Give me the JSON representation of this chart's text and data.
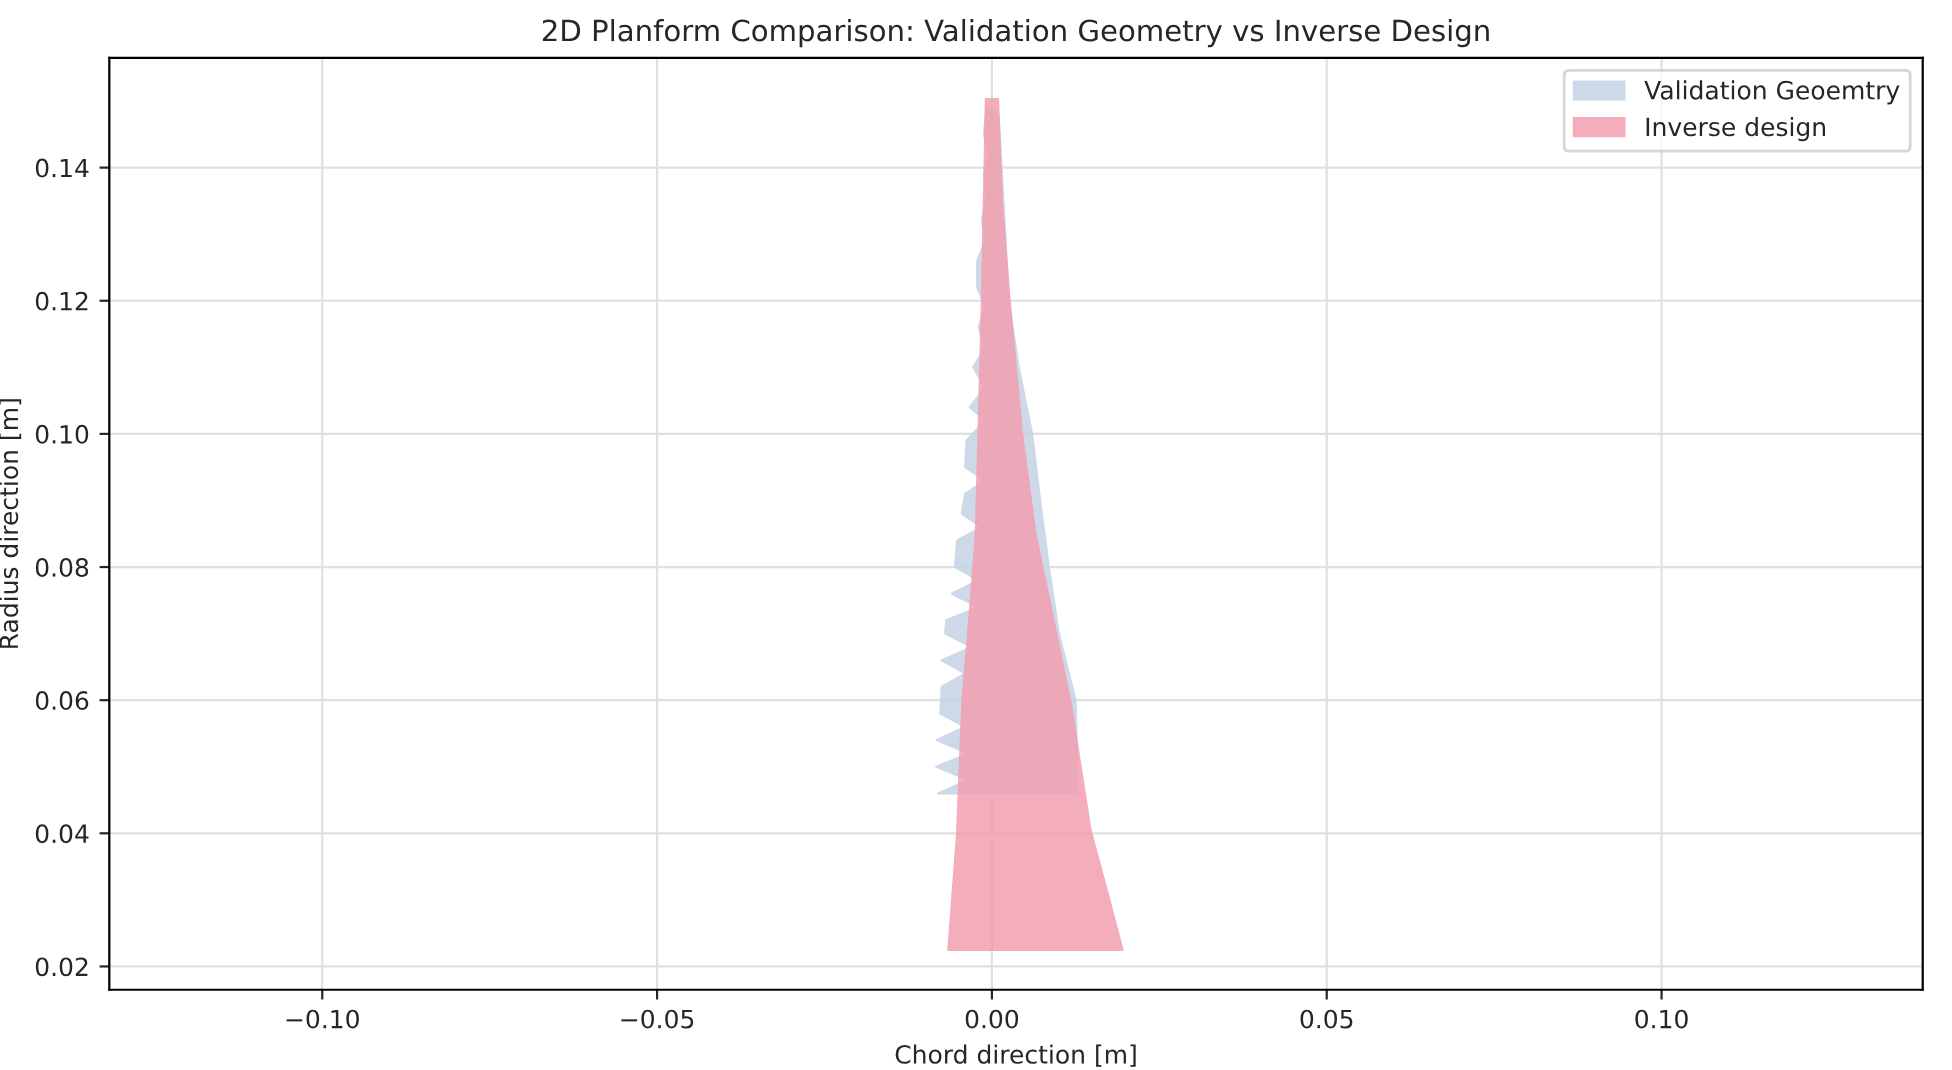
{
  "chart_data": {
    "type": "area",
    "title": "2D Planform Comparison: Validation Geometry vs Inverse Design",
    "xlabel": "Chord direction [m]",
    "ylabel": "Radius direction [m]",
    "series": [
      {
        "name": "Validation Geoemtry",
        "color": "#c5d3e6",
        "x": [
          0.0128,
          0.0125,
          0.01,
          0.0085,
          0.0072,
          0.006,
          0.004,
          0.0025,
          0.002,
          0.001,
          -0.0008,
          -0.0012,
          -0.0005,
          -0.0012,
          -0.0008,
          -0.0015,
          -0.001,
          -0.0022,
          -0.0022,
          -0.001,
          -0.002,
          -0.001,
          -0.0028,
          -0.001,
          -0.0033,
          -0.001,
          -0.0038,
          -0.004,
          -0.001,
          -0.004,
          -0.0045,
          -0.0015,
          -0.0052,
          -0.0055,
          -0.002,
          -0.006,
          -0.002,
          -0.0068,
          -0.007,
          -0.003,
          -0.0075,
          -0.004,
          -0.0075,
          -0.0077,
          -0.004,
          -0.0082,
          -0.0035,
          -0.0083,
          -0.0035,
          -0.008
        ],
        "values": [
          0.046,
          0.06,
          0.07,
          0.08,
          0.09,
          0.1,
          0.11,
          0.12,
          0.13,
          0.148,
          0.149,
          0.145,
          0.142,
          0.139,
          0.136,
          0.132,
          0.129,
          0.126,
          0.122,
          0.119,
          0.116,
          0.113,
          0.11,
          0.107,
          0.104,
          0.102,
          0.099,
          0.095,
          0.093,
          0.091,
          0.088,
          0.086,
          0.084,
          0.08,
          0.078,
          0.076,
          0.074,
          0.072,
          0.07,
          0.068,
          0.066,
          0.064,
          0.062,
          0.058,
          0.056,
          0.054,
          0.052,
          0.05,
          0.048,
          0.046
        ]
      },
      {
        "name": "Inverse design",
        "color": "#f29fb0",
        "x": [
          -0.0065,
          0.0195,
          0.017,
          0.0147,
          0.0118,
          0.009,
          0.0065,
          0.0045,
          0.0026,
          0.0015,
          0.0009,
          -0.0009,
          -0.0012,
          -0.0015,
          -0.002,
          -0.0024,
          -0.0034,
          -0.0044,
          -0.0052
        ],
        "values": [
          0.0225,
          0.0225,
          0.032,
          0.0406,
          0.0594,
          0.073,
          0.085,
          0.1,
          0.1206,
          0.135,
          0.1503,
          0.1503,
          0.135,
          0.12,
          0.1,
          0.085,
          0.072,
          0.06,
          0.04
        ]
      }
    ],
    "xlim": [
      -0.1318,
      0.139
    ],
    "ylim": [
      0.0165,
      0.1565
    ],
    "xticks": [
      {
        "value": -0.1,
        "label": "−0.10"
      },
      {
        "value": -0.05,
        "label": "−0.05"
      },
      {
        "value": 0,
        "label": "0.00"
      },
      {
        "value": 0.05,
        "label": "0.05"
      },
      {
        "value": 0.1,
        "label": "0.10"
      }
    ],
    "yticks": [
      0.02,
      0.04,
      0.06,
      0.08,
      {
        "value": 0.1,
        "label": "0.10"
      },
      0.12,
      0.14
    ],
    "grid": true,
    "legend": "top right"
  }
}
